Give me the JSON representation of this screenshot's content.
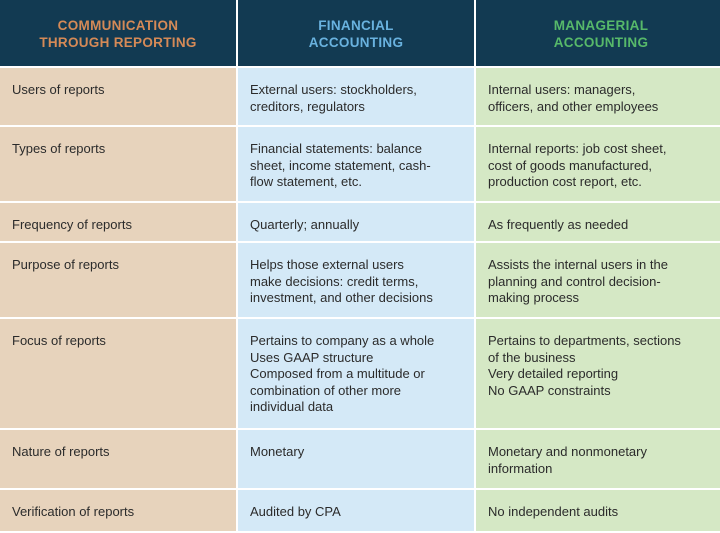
{
  "headers": [
    "COMMUNICATION\nTHROUGH REPORTING",
    "FINANCIAL\nACCOUNTING",
    "MANAGERIAL\nACCOUNTING"
  ],
  "rows": [
    {
      "label": "Users of reports",
      "financial": "External users: stockholders,\ncreditors, regulators",
      "managerial": "Internal users: managers,\nofficers, and other employees"
    },
    {
      "label": "Types of reports",
      "financial": "Financial statements: balance\nsheet, income statement, cash-\nflow statement, etc.",
      "managerial": "Internal reports: job cost sheet,\ncost of goods manufactured,\nproduction cost report, etc."
    },
    {
      "label": "Frequency of reports",
      "financial": "Quarterly; annually",
      "managerial": "As frequently as needed"
    },
    {
      "label": "Purpose of reports",
      "financial": "Helps those external users\nmake decisions: credit terms,\ninvestment, and other decisions",
      "managerial": "Assists the internal users in the\nplanning and control decision-\nmaking process"
    },
    {
      "label": "Focus of reports",
      "financial": "Pertains to company as a whole\nUses GAAP structure\nComposed from a multitude or\ncombination of other more\nindividual data",
      "managerial": "Pertains to departments, sections\nof the business\nVery detailed reporting\nNo GAAP constraints"
    },
    {
      "label": "Nature of reports",
      "financial": "Monetary",
      "managerial": "Monetary and nonmonetary\ninformation"
    },
    {
      "label": "Verification of reports",
      "financial": "Audited by CPA",
      "managerial": "No independent audits"
    }
  ]
}
